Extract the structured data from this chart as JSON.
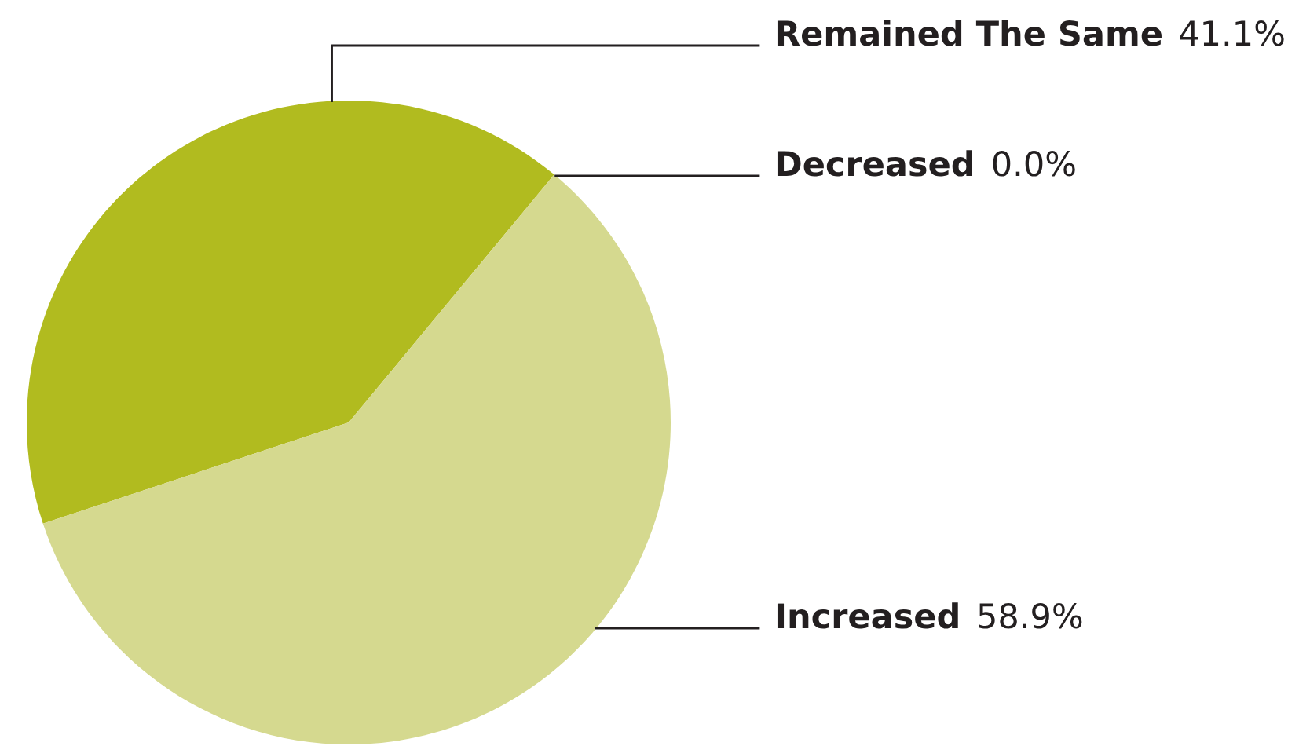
{
  "chart_data": {
    "type": "pie",
    "categories": [
      "Remained The Same",
      "Decreased",
      "Increased"
    ],
    "values": [
      41.1,
      0.0,
      58.9
    ],
    "colors": [
      "#b1bb1f",
      null,
      "#d5d98f"
    ],
    "value_labels": [
      "41.1%",
      "0.0%",
      "58.9%"
    ]
  }
}
